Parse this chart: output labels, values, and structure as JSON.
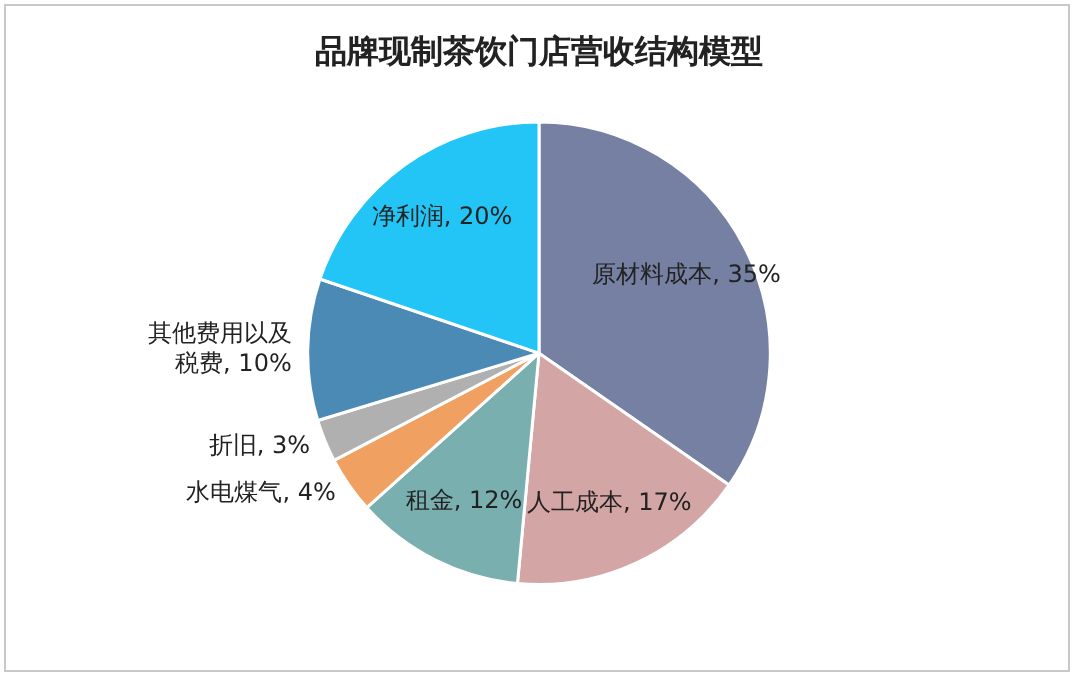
{
  "chart_data": {
    "type": "pie",
    "title": "品牌现制茶饮门店营收结构模型",
    "categories": [
      "原材料成本",
      "人工成本",
      "租金",
      "水电煤气",
      "折旧",
      "其他费用以及税费",
      "净利润"
    ],
    "values": [
      35,
      17,
      12,
      4,
      3,
      10,
      20
    ],
    "value_labels": [
      "35%",
      "17%",
      "12%",
      "4%",
      "3%",
      "10%",
      "20%"
    ],
    "colors": [
      "#7580a3",
      "#d4a5a5",
      "#7aafb0",
      "#f0a060",
      "#b0b0b0",
      "#4a8ab5",
      "#22c5f5"
    ],
    "legend": false
  }
}
